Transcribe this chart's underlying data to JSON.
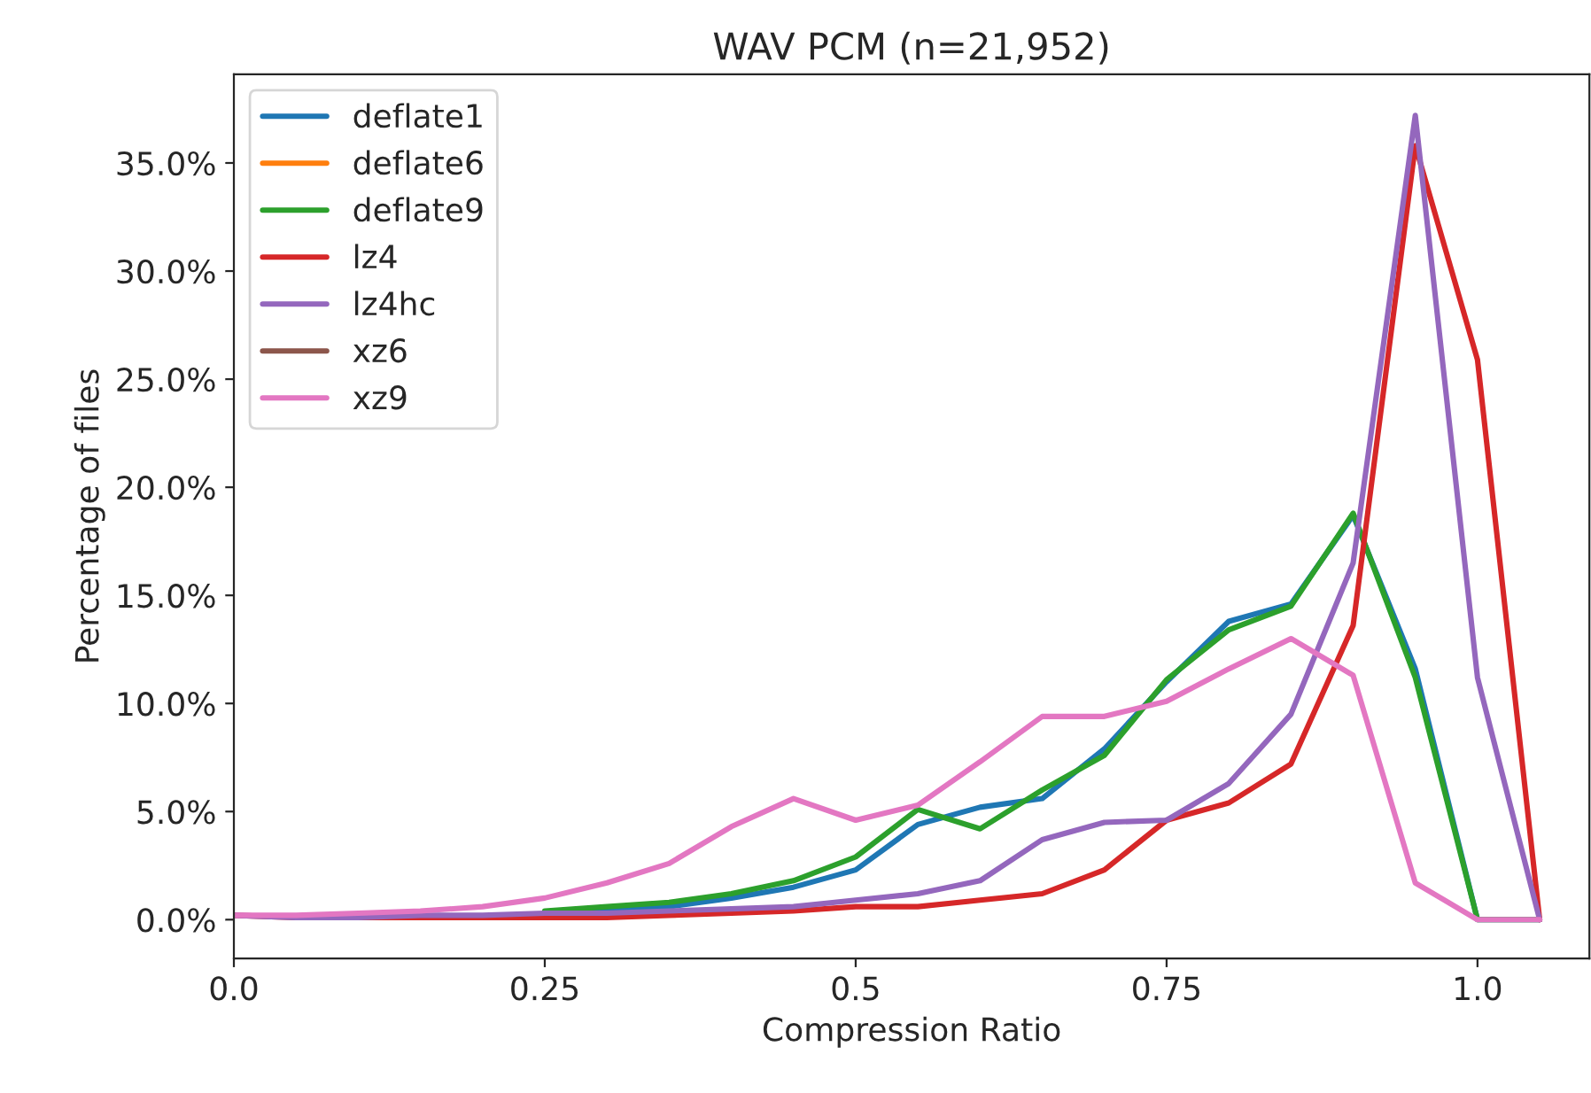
{
  "chart_data": {
    "type": "line",
    "title": "WAV PCM (n=21,952)",
    "xlabel": "Compression Ratio",
    "ylabel": "Percentage of files",
    "x": [
      0,
      0.05,
      0.1,
      0.15,
      0.2,
      0.25,
      0.3,
      0.35,
      0.4,
      0.45,
      0.5,
      0.55,
      0.6,
      0.65,
      0.7,
      0.75,
      0.8,
      0.85,
      0.9,
      0.95,
      1.0,
      1.05
    ],
    "series": [
      {
        "name": "deflate1",
        "color": "#1f77b4",
        "values": [
          null,
          null,
          null,
          null,
          null,
          0.3,
          0.4,
          0.6,
          1.0,
          1.5,
          2.3,
          4.4,
          5.2,
          5.6,
          7.9,
          11.0,
          13.8,
          14.6,
          18.7,
          11.6,
          0,
          0
        ]
      },
      {
        "name": "deflate6",
        "color": "#ff7f0e",
        "values": [
          null,
          null,
          null,
          null,
          null,
          null,
          null,
          null,
          null,
          null,
          null,
          null,
          null,
          null,
          null,
          null,
          null,
          null,
          null,
          null,
          null,
          null
        ]
      },
      {
        "name": "deflate9",
        "color": "#2ca02c",
        "values": [
          null,
          null,
          null,
          null,
          null,
          0.4,
          0.6,
          0.8,
          1.2,
          1.8,
          2.9,
          5.1,
          4.2,
          6.0,
          7.6,
          11.1,
          13.4,
          14.5,
          18.8,
          11.2,
          0,
          0
        ]
      },
      {
        "name": "lz4",
        "color": "#d62728",
        "values": [
          0.2,
          0.1,
          0.1,
          0.1,
          0.1,
          0.1,
          0.1,
          0.2,
          0.3,
          0.4,
          0.6,
          0.6,
          0.9,
          1.2,
          2.3,
          4.6,
          5.4,
          7.2,
          13.6,
          35.8,
          25.9,
          0
        ]
      },
      {
        "name": "lz4hc",
        "color": "#9467bd",
        "values": [
          0.2,
          0.1,
          0.1,
          0.2,
          0.2,
          0.3,
          0.3,
          0.4,
          0.5,
          0.6,
          0.9,
          1.2,
          1.8,
          3.7,
          4.5,
          4.6,
          6.3,
          9.5,
          16.5,
          37.2,
          11.2,
          0
        ]
      },
      {
        "name": "xz6",
        "color": "#8c564b",
        "values": [
          null,
          null,
          null,
          null,
          null,
          null,
          null,
          null,
          null,
          null,
          null,
          null,
          null,
          null,
          null,
          null,
          null,
          null,
          null,
          null,
          null,
          null
        ]
      },
      {
        "name": "xz9",
        "color": "#e377c2",
        "values": [
          0.2,
          0.2,
          0.3,
          0.4,
          0.6,
          1.0,
          1.7,
          2.6,
          4.3,
          5.6,
          4.6,
          5.3,
          7.3,
          9.4,
          9.4,
          10.1,
          11.6,
          13.0,
          11.3,
          1.7,
          0,
          0
        ]
      }
    ],
    "xlim": [
      0,
      1.09
    ],
    "ylim": [
      -1.8,
      39.1
    ],
    "xticks": [
      {
        "value": 0,
        "label": "0.0"
      },
      0.25,
      0.5,
      0.75,
      {
        "value": 1.0,
        "label": "1.0"
      }
    ],
    "yticks": [
      {
        "value": 0,
        "label": "0.0%"
      },
      {
        "value": 5,
        "label": "5.0%"
      },
      {
        "value": 10,
        "label": "10.0%"
      },
      {
        "value": 15,
        "label": "15.0%"
      },
      {
        "value": 20,
        "label": "20.0%"
      },
      {
        "value": 25,
        "label": "25.0%"
      },
      {
        "value": 30,
        "label": "30.0%"
      },
      {
        "value": 35,
        "label": "35.0%"
      }
    ],
    "grid": false,
    "legend": "top left",
    "marker": "none",
    "line_style": "solid"
  }
}
